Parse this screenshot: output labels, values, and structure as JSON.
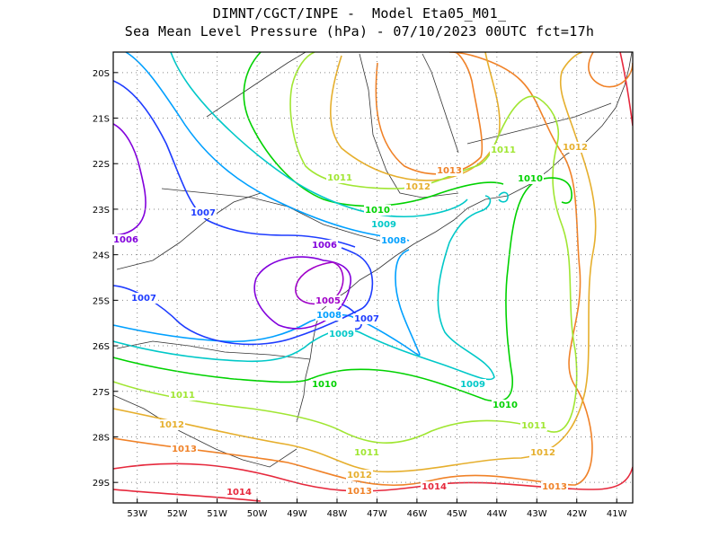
{
  "title": {
    "line1": "DIMNT/CGCT/INPE -  Model Eta05_M01_",
    "line2": "Sea Mean Level Pressure (hPa) - 07/10/2023 00UTC fct=17h"
  },
  "map": {
    "lon_range": [
      -53.6,
      -40.6
    ],
    "lat_range": [
      -29.45,
      -19.55
    ],
    "lon_ticks": [
      "53W",
      "52W",
      "51W",
      "50W",
      "49W",
      "48W",
      "47W",
      "46W",
      "45W",
      "44W",
      "43W",
      "42W",
      "41W"
    ],
    "lat_ticks": [
      "20S",
      "21S",
      "22S",
      "23S",
      "24S",
      "25S",
      "26S",
      "27S",
      "28S",
      "29S"
    ]
  },
  "contour_labels": [
    {
      "text": "1005",
      "level": 1005
    },
    {
      "text": "1006",
      "level": 1006
    },
    {
      "text": "1006",
      "level": 1006
    },
    {
      "text": "1007",
      "level": 1007
    },
    {
      "text": "1007",
      "level": 1007
    },
    {
      "text": "1007",
      "level": 1007
    },
    {
      "text": "1008",
      "level": 1008
    },
    {
      "text": "1008",
      "level": 1008
    },
    {
      "text": "1009",
      "level": 1009
    },
    {
      "text": "1009",
      "level": 1009
    },
    {
      "text": "1009",
      "level": 1009
    },
    {
      "text": "1010",
      "level": 1010
    },
    {
      "text": "1010",
      "level": 1010
    },
    {
      "text": "1010",
      "level": 1010
    },
    {
      "text": "1010",
      "level": 1010
    },
    {
      "text": "1011",
      "level": 1011
    },
    {
      "text": "1011",
      "level": 1011
    },
    {
      "text": "1011",
      "level": 1011
    },
    {
      "text": "1011",
      "level": 1011
    },
    {
      "text": "1011",
      "level": 1011
    },
    {
      "text": "1012",
      "level": 1012
    },
    {
      "text": "1012",
      "level": 1012
    },
    {
      "text": "1012",
      "level": 1012
    },
    {
      "text": "1012",
      "level": 1012
    },
    {
      "text": "1012",
      "level": 1012
    },
    {
      "text": "1013",
      "level": 1013
    },
    {
      "text": "1013",
      "level": 1013
    },
    {
      "text": "1013",
      "level": 1013
    },
    {
      "text": "1013",
      "level": 1013
    },
    {
      "text": "1014",
      "level": 1014
    },
    {
      "text": "1014",
      "level": 1014
    }
  ],
  "level_colors": {
    "1005": "#a000c8",
    "1006": "#8200dc",
    "1007": "#1e3cff",
    "1008": "#00a0ff",
    "1009": "#00c8c8",
    "1010": "#00d200",
    "1011": "#a0e632",
    "1012": "#e6af2d",
    "1013": "#f08228",
    "1014": "#e6283c"
  }
}
